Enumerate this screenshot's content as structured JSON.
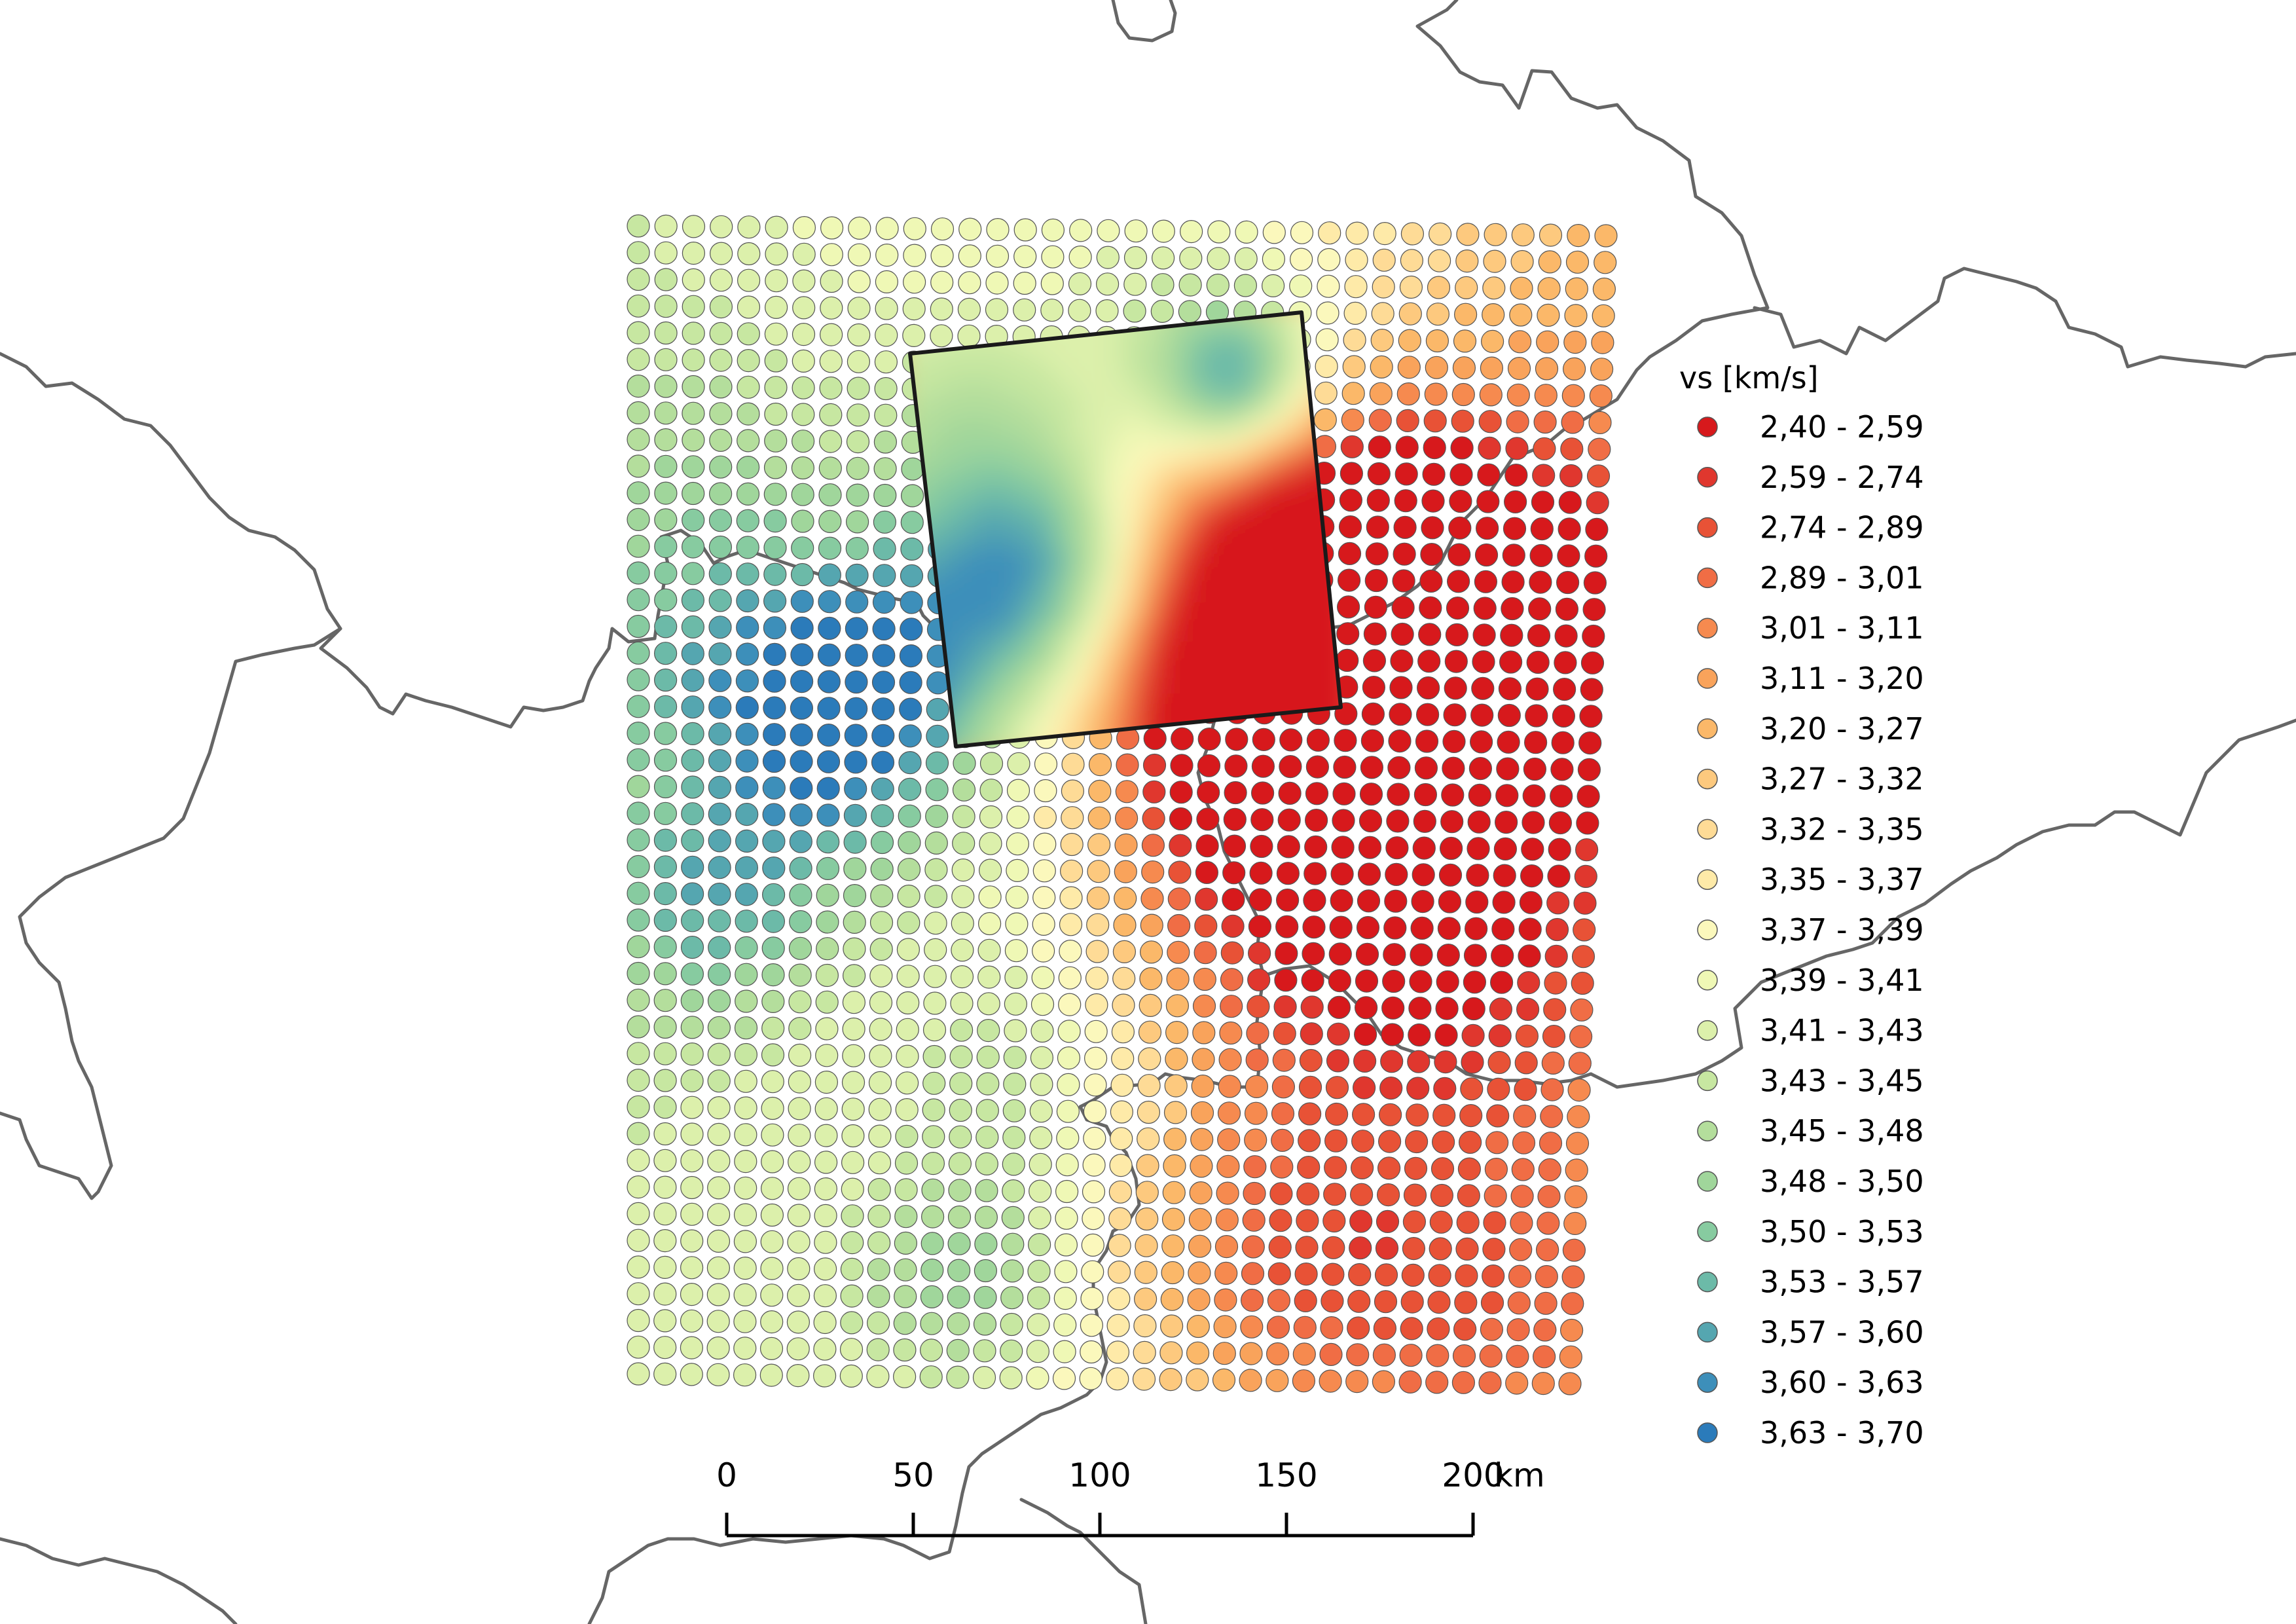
{
  "legend": {
    "title": "vs [km/s]",
    "classes": [
      {
        "label": "2,40 - 2,59",
        "color": "#d7191c"
      },
      {
        "label": "2,59 - 2,74",
        "color": "#e0372e"
      },
      {
        "label": "2,74 - 2,89",
        "color": "#e85236"
      },
      {
        "label": "2,89 - 3,01",
        "color": "#f06d45"
      },
      {
        "label": "3,01 - 3,11",
        "color": "#f68a4f"
      },
      {
        "label": "3,11 - 3,20",
        "color": "#f9a35b"
      },
      {
        "label": "3,20 - 3,27",
        "color": "#fbb869"
      },
      {
        "label": "3,27 - 3,32",
        "color": "#fdc97e"
      },
      {
        "label": "3,32 - 3,35",
        "color": "#fedb96"
      },
      {
        "label": "3,35 - 3,37",
        "color": "#feeaa8"
      },
      {
        "label": "3,37 - 3,39",
        "color": "#fbf8bc"
      },
      {
        "label": "3,39 - 3,41",
        "color": "#eff8b5"
      },
      {
        "label": "3,41 - 3,43",
        "color": "#dcf0ab"
      },
      {
        "label": "3,43 - 3,45",
        "color": "#c7e7a1"
      },
      {
        "label": "3,45 - 3,48",
        "color": "#b4de9c"
      },
      {
        "label": "3,48 - 3,50",
        "color": "#a0d69b"
      },
      {
        "label": "3,50 - 3,53",
        "color": "#87cba0"
      },
      {
        "label": "3,53 - 3,57",
        "color": "#6cbaa8"
      },
      {
        "label": "3,57 - 3,60",
        "color": "#55a6b0"
      },
      {
        "label": "3,60 - 3,63",
        "color": "#3d8fba"
      },
      {
        "label": "3,63 - 3,70",
        "color": "#2b7bba"
      }
    ]
  },
  "scale_bar": {
    "ticks": [
      "0",
      "50",
      "100",
      "150",
      "200"
    ],
    "unit": "km"
  },
  "colors": {
    "border": "#666666",
    "frame": "#1a1a1a",
    "point_outline": "#555555"
  }
}
